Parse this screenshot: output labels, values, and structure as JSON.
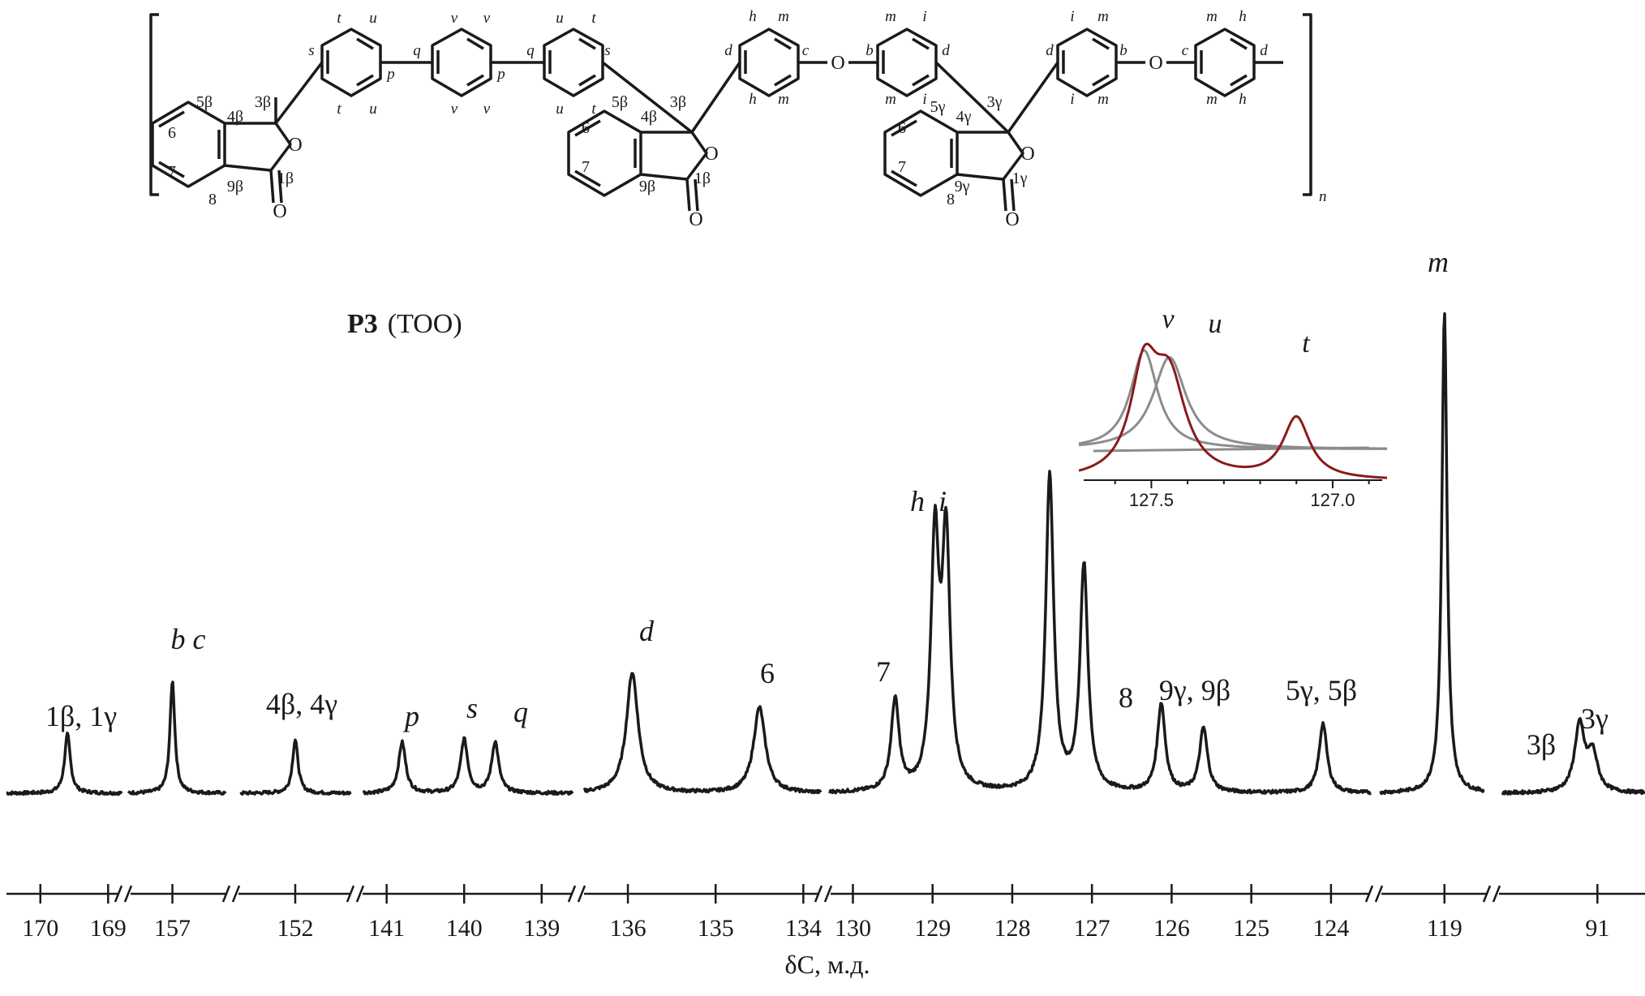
{
  "title": {
    "bold": "P3",
    "rest": "(TOO)"
  },
  "structure": {
    "n_label": "n",
    "oxygen": "O",
    "labels": [
      "t",
      "u",
      "v",
      "v",
      "u",
      "t",
      "s",
      "q",
      "p",
      "q",
      "p",
      "s",
      "t",
      "u",
      "v",
      "v",
      "u",
      "t",
      "h",
      "m",
      "c",
      "b",
      "m",
      "i",
      "d",
      "d",
      "h",
      "m",
      "m",
      "i",
      "d",
      "i",
      "m",
      "b",
      "c",
      "m",
      "h",
      "d",
      "i",
      "m",
      "m",
      "h",
      "5β",
      "4β",
      "3β",
      "6",
      "7",
      "8",
      "9β",
      "1β",
      "5β",
      "4β",
      "3β",
      "6",
      "7",
      "9β",
      "1β",
      "5γ",
      "4γ",
      "3γ",
      "6",
      "7",
      "8",
      "9γ",
      "1γ"
    ]
  },
  "chart_data": {
    "type": "line",
    "xlabel": "δC, м.д.",
    "axis_direction": "reversed",
    "grid": false,
    "broken_axis": true,
    "segments": [
      {
        "range": [
          170.5,
          168.8
        ],
        "ticks": [
          170,
          169
        ],
        "peaks": [
          {
            "label": "1β, 1γ",
            "shift": 169.6,
            "intensity": 0.22
          }
        ]
      },
      {
        "range": [
          157.5,
          156.4
        ],
        "ticks": [
          157
        ],
        "peaks": [
          {
            "label": "b  c",
            "shift": 157.0,
            "intensity": 0.42
          }
        ]
      },
      {
        "range": [
          153.0,
          151.0
        ],
        "ticks": [
          152
        ],
        "peaks": [
          {
            "label": "4β, 4γ",
            "shift": 152.0,
            "intensity": 0.2
          }
        ]
      },
      {
        "range": [
          141.3,
          138.6
        ],
        "ticks": [
          141,
          140,
          139
        ],
        "peaks": [
          {
            "label": "p",
            "shift": 140.8,
            "intensity": 0.19
          },
          {
            "label": "s",
            "shift": 140.0,
            "intensity": 0.2
          },
          {
            "label": "q",
            "shift": 139.6,
            "intensity": 0.19
          }
        ]
      },
      {
        "range": [
          136.5,
          133.8
        ],
        "ticks": [
          136,
          135,
          134
        ],
        "peaks": [
          {
            "label": "d",
            "shift": 135.95,
            "intensity": 0.45
          },
          {
            "label": "6",
            "shift": 134.5,
            "intensity": 0.32
          }
        ]
      },
      {
        "range": [
          130.3,
          123.5
        ],
        "ticks": [
          130,
          129,
          128,
          127,
          126,
          125,
          124
        ],
        "peaks": [
          {
            "label": "7",
            "shift": 129.47,
            "intensity": 0.34
          },
          {
            "label": "h",
            "shift": 128.97,
            "intensity": 0.92
          },
          {
            "label": "i",
            "shift": 128.83,
            "intensity": 0.92
          },
          {
            "label": "",
            "shift": 127.53,
            "intensity": 1.18
          },
          {
            "label": "",
            "shift": 127.1,
            "intensity": 0.84
          },
          {
            "label": "8",
            "shift": 126.13,
            "intensity": 0.33
          },
          {
            "label": "9γ, 9β",
            "shift": 125.6,
            "intensity": 0.24
          },
          {
            "label": "5γ, 5β",
            "shift": 124.1,
            "intensity": 0.26
          }
        ]
      },
      {
        "range": [
          119.8,
          118.5
        ],
        "ticks": [
          119
        ],
        "peaks": [
          {
            "label": "m",
            "shift": 119.0,
            "intensity": 1.8
          }
        ]
      },
      {
        "range": [
          91.8,
          90.6
        ],
        "ticks": [
          91
        ],
        "peaks": [
          {
            "label": "3β",
            "shift": 91.15,
            "intensity": 0.25
          },
          {
            "label": "3γ",
            "shift": 91.04,
            "intensity": 0.14
          }
        ]
      }
    ],
    "inset": {
      "x_range": [
        127.7,
        126.85
      ],
      "ticks": [
        "127.5",
        "127.0"
      ],
      "peaks": [
        {
          "label": "v",
          "shift": 127.52,
          "intensity": 1.0
        },
        {
          "label": "u",
          "shift": 127.45,
          "intensity": 0.93
        },
        {
          "label": "t",
          "shift": 127.1,
          "intensity": 0.62
        }
      ],
      "colors": {
        "experimental": "#8b1a1a",
        "fit": "#8c8c8c"
      }
    }
  }
}
